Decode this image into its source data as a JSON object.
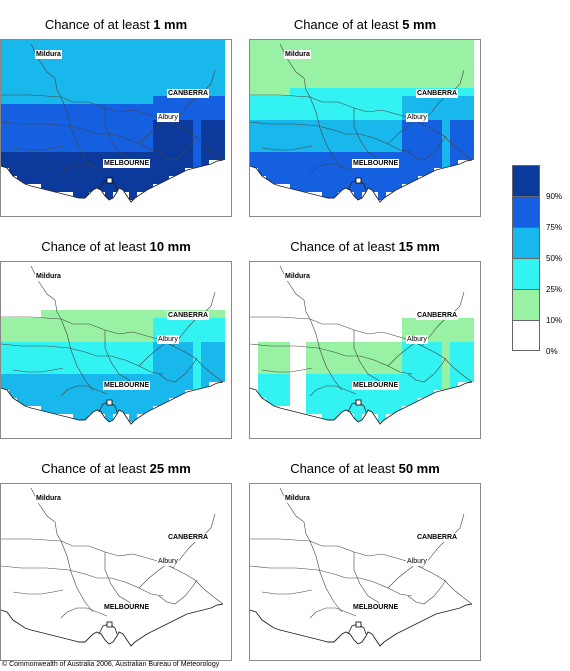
{
  "panels": [
    {
      "title_prefix": "Chance of at least ",
      "amount": "1 mm",
      "level": 5
    },
    {
      "title_prefix": "Chance of at least ",
      "amount": "5 mm",
      "level": 4
    },
    {
      "title_prefix": "Chance of at least ",
      "amount": "10 mm",
      "level": 3
    },
    {
      "title_prefix": "Chance of at least ",
      "amount": "15 mm",
      "level": 2
    },
    {
      "title_prefix": "Chance of at least ",
      "amount": "25 mm",
      "level": 0
    },
    {
      "title_prefix": "Chance of at least ",
      "amount": "50 mm",
      "level": 0
    }
  ],
  "cities": {
    "mildura": "Mildura",
    "canberra": "CANBERRA",
    "albury": "Albury",
    "melbourne": "MELBOURNE"
  },
  "legend": {
    "colors": [
      "#0b3a9c",
      "#1560e0",
      "#19b8ec",
      "#33f2f2",
      "#99f2a3",
      "#ffffff"
    ],
    "labels": [
      "90%",
      "75%",
      "50%",
      "25%",
      "10%",
      "0%"
    ]
  },
  "copyright": "© Commonwealth of Australia 2006, Australian Bureau of Meteorology"
}
